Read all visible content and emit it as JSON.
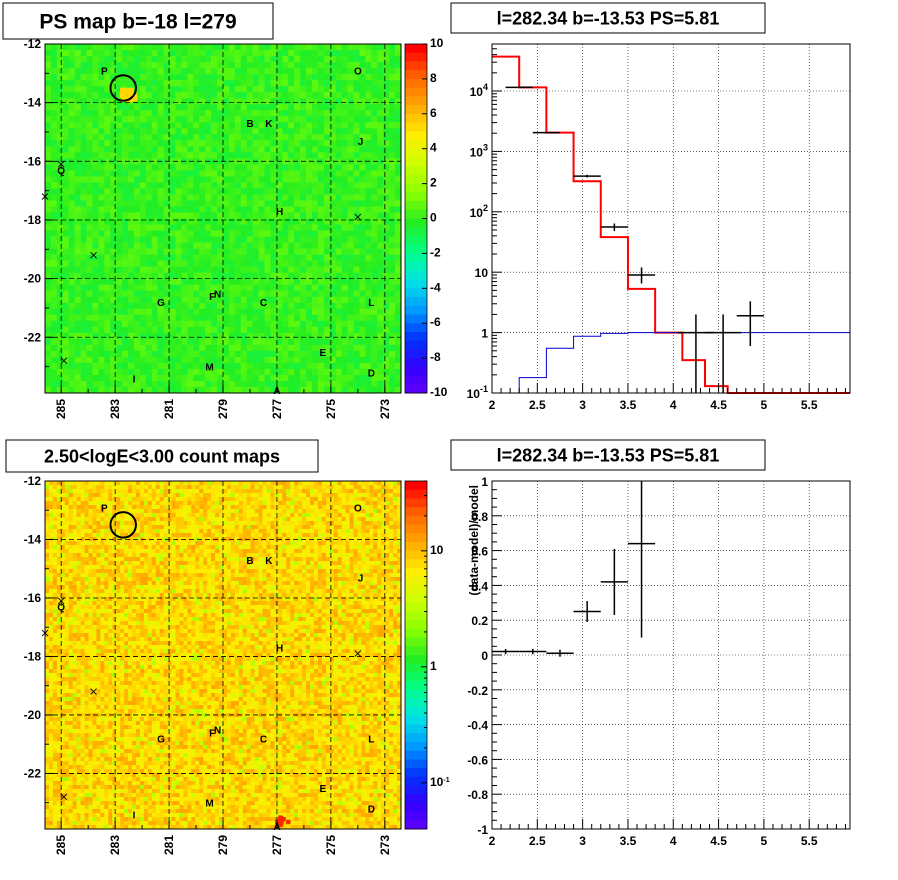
{
  "chart_data": [
    {
      "type": "heatmap",
      "title": "PS map b=-18 l=279",
      "x_ticks": [
        "285",
        "283",
        "281",
        "279",
        "277",
        "275",
        "273"
      ],
      "y_ticks": [
        "-12",
        "-14",
        "-16",
        "-18",
        "-20",
        "-22"
      ],
      "xlim": [
        285.6,
        272.4
      ],
      "ylim": [
        -23.9,
        -12.0
      ],
      "colorbar_ticks": [
        "10",
        "8",
        "6",
        "4",
        "2",
        "0",
        "-2",
        "-4",
        "-6",
        "-8",
        "-10"
      ],
      "colorbar_range": [
        -10,
        10
      ],
      "background_value": 0,
      "grid": true,
      "labels": [
        {
          "text": "P",
          "l": 283.4,
          "b": -12.9
        },
        {
          "text": "O",
          "l": 274.0,
          "b": -12.9
        },
        {
          "text": "B",
          "l": 278.0,
          "b": -14.7
        },
        {
          "text": "K",
          "l": 277.3,
          "b": -14.7
        },
        {
          "text": "J",
          "l": 273.9,
          "b": -15.3
        },
        {
          "text": "Q",
          "l": 285.0,
          "b": -16.3
        },
        {
          "text": "H",
          "l": 276.9,
          "b": -17.7
        },
        {
          "text": "G",
          "l": 281.3,
          "b": -20.8
        },
        {
          "text": "F",
          "l": 279.4,
          "b": -20.6
        },
        {
          "text": "N",
          "l": 279.2,
          "b": -20.5
        },
        {
          "text": "C",
          "l": 277.5,
          "b": -20.8
        },
        {
          "text": "L",
          "l": 273.5,
          "b": -20.8
        },
        {
          "text": "E",
          "l": 275.3,
          "b": -22.5
        },
        {
          "text": "M",
          "l": 279.5,
          "b": -23.0
        },
        {
          "text": "D",
          "l": 273.5,
          "b": -23.2
        },
        {
          "text": "I",
          "l": 282.3,
          "b": -23.4
        },
        {
          "text": "A",
          "l": 277.0,
          "b": -23.8
        }
      ],
      "markers": [
        {
          "l": 285.0,
          "b": -16.1
        },
        {
          "l": 285.6,
          "b": -17.2
        },
        {
          "l": 283.8,
          "b": -19.2
        },
        {
          "l": 274.0,
          "b": -17.9
        },
        {
          "l": 284.9,
          "b": -22.8
        }
      ],
      "circle": {
        "l": 282.7,
        "b": -13.5,
        "r_deg": 0.45
      },
      "hotspot": {
        "l": 282.6,
        "b": -13.6
      }
    },
    {
      "type": "line",
      "title": "l=282.34 b=-13.53 PS=5.81",
      "log_y": true,
      "xlim": [
        2.0,
        5.95
      ],
      "ylim": [
        0.1,
        60000
      ],
      "x_ticks": [
        "2",
        "2.5",
        "3",
        "3.5",
        "4",
        "4.5",
        "5",
        "5.5"
      ],
      "y_ticks": [
        {
          "value": 0.1,
          "label": "10^-1"
        },
        {
          "value": 1,
          "label": "1"
        },
        {
          "value": 10,
          "label": "10"
        },
        {
          "value": 100,
          "label": "10^2"
        },
        {
          "value": 1000,
          "label": "10^3"
        },
        {
          "value": 10000,
          "label": "10^4"
        }
      ],
      "grid": true,
      "series": [
        {
          "color": "#ff0000",
          "steps": [
            {
              "x0": 2.0,
              "x1": 2.3,
              "y": 37000
            },
            {
              "x0": 2.3,
              "x1": 2.6,
              "y": 11500
            },
            {
              "x0": 2.6,
              "x1": 2.9,
              "y": 2050
            },
            {
              "x0": 2.9,
              "x1": 3.2,
              "y": 320
            },
            {
              "x0": 3.2,
              "x1": 3.5,
              "y": 38
            },
            {
              "x0": 3.5,
              "x1": 3.8,
              "y": 5.3
            },
            {
              "x0": 3.8,
              "x1": 4.1,
              "y": 1.0
            },
            {
              "x0": 4.1,
              "x1": 4.35,
              "y": 0.35
            },
            {
              "x0": 4.35,
              "x1": 4.6,
              "y": 0.13
            },
            {
              "x0": 4.6,
              "x1": 5.95,
              "y": 0.1
            }
          ]
        },
        {
          "color": "#0000cc",
          "steps": [
            {
              "x0": 2.0,
              "x1": 2.3,
              "y": 0.1
            },
            {
              "x0": 2.3,
              "x1": 2.6,
              "y": 0.18
            },
            {
              "x0": 2.6,
              "x1": 2.9,
              "y": 0.55
            },
            {
              "x0": 2.9,
              "x1": 3.2,
              "y": 0.87
            },
            {
              "x0": 3.2,
              "x1": 3.5,
              "y": 0.97
            },
            {
              "x0": 3.5,
              "x1": 3.8,
              "y": 1.0
            },
            {
              "x0": 3.8,
              "x1": 5.95,
              "y": 1.0
            }
          ]
        },
        {
          "color": "#000000",
          "points": [
            {
              "x": 2.3,
              "xerr": 0.15,
              "y": 11500,
              "ylo": 11300,
              "yhi": 11700
            },
            {
              "x": 2.6,
              "xerr": 0.15,
              "y": 2050,
              "ylo": 2000,
              "yhi": 2100
            },
            {
              "x": 3.05,
              "xerr": 0.15,
              "y": 390,
              "ylo": 370,
              "yhi": 410
            },
            {
              "x": 3.35,
              "xerr": 0.15,
              "y": 56,
              "ylo": 48,
              "yhi": 64
            },
            {
              "x": 3.65,
              "xerr": 0.15,
              "y": 9,
              "ylo": 6.5,
              "yhi": 12
            },
            {
              "x": 4.25,
              "xerr": 0.2,
              "y": 1.0,
              "ylo": 0.1,
              "yhi": 2.0
            },
            {
              "x": 4.55,
              "xerr": 0.2,
              "y": 1.0,
              "ylo": 0.1,
              "yhi": 2.0
            },
            {
              "x": 4.85,
              "xerr": 0.15,
              "y": 1.9,
              "ylo": 0.6,
              "yhi": 3.3
            }
          ]
        }
      ]
    },
    {
      "type": "heatmap",
      "title": "2.50<logE<3.00 count maps",
      "x_ticks": [
        "285",
        "283",
        "281",
        "279",
        "277",
        "275",
        "273"
      ],
      "y_ticks": [
        "-12",
        "-14",
        "-16",
        "-18",
        "-20",
        "-22"
      ],
      "xlim": [
        285.6,
        272.4
      ],
      "ylim": [
        -23.9,
        -12.0
      ],
      "colorbar_ticks": [
        {
          "value": 10,
          "label": "10"
        },
        {
          "value": 1,
          "label": "1"
        },
        {
          "value": 0.1,
          "label": "10^-1"
        }
      ],
      "colorbar_range": [
        0.04,
        40
      ],
      "grid": true,
      "labels": [
        {
          "text": "P",
          "l": 283.4,
          "b": -12.9
        },
        {
          "text": "O",
          "l": 274.0,
          "b": -12.9
        },
        {
          "text": "B",
          "l": 278.0,
          "b": -14.7
        },
        {
          "text": "K",
          "l": 277.3,
          "b": -14.7
        },
        {
          "text": "J",
          "l": 273.9,
          "b": -15.3
        },
        {
          "text": "Q",
          "l": 285.0,
          "b": -16.3
        },
        {
          "text": "H",
          "l": 276.9,
          "b": -17.7
        },
        {
          "text": "G",
          "l": 281.3,
          "b": -20.8
        },
        {
          "text": "F",
          "l": 279.4,
          "b": -20.6
        },
        {
          "text": "N",
          "l": 279.2,
          "b": -20.5
        },
        {
          "text": "C",
          "l": 277.5,
          "b": -20.8
        },
        {
          "text": "L",
          "l": 273.5,
          "b": -20.8
        },
        {
          "text": "E",
          "l": 275.3,
          "b": -22.5
        },
        {
          "text": "M",
          "l": 279.5,
          "b": -23.0
        },
        {
          "text": "D",
          "l": 273.5,
          "b": -23.2
        },
        {
          "text": "I",
          "l": 282.3,
          "b": -23.4
        },
        {
          "text": "A",
          "l": 277.0,
          "b": -23.8
        }
      ],
      "markers": [
        {
          "l": 285.0,
          "b": -16.1
        },
        {
          "l": 285.6,
          "b": -17.2
        },
        {
          "l": 283.8,
          "b": -19.2
        },
        {
          "l": 274.0,
          "b": -17.9
        },
        {
          "l": 284.9,
          "b": -22.8
        }
      ],
      "circle": {
        "l": 282.7,
        "b": -13.5,
        "r_deg": 0.45
      },
      "hotspot": {
        "l": 276.9,
        "b": -23.6
      }
    },
    {
      "type": "scatter",
      "title": "l=282.34 b=-13.53 PS=5.81",
      "ylabel": "(data-model)/model",
      "xlim": [
        2.0,
        5.95
      ],
      "ylim": [
        -1.0,
        1.0
      ],
      "x_ticks": [
        "2",
        "2.5",
        "3",
        "3.5",
        "4",
        "4.5",
        "5",
        "5.5"
      ],
      "y_ticks": [
        "1",
        "0.8",
        "0.6",
        "0.4",
        "0.2",
        "0",
        "-0.2",
        "-0.4",
        "-0.6",
        "-0.8",
        "-1"
      ],
      "grid": true,
      "points": [
        {
          "x": 2.15,
          "xerr": 0.15,
          "y": 0.02,
          "yerr": 0.015
        },
        {
          "x": 2.45,
          "xerr": 0.15,
          "y": 0.02,
          "yerr": 0.015
        },
        {
          "x": 2.75,
          "xerr": 0.15,
          "y": 0.01,
          "yerr": 0.02
        },
        {
          "x": 3.05,
          "xerr": 0.15,
          "y": 0.25,
          "yerr": 0.06
        },
        {
          "x": 3.35,
          "xerr": 0.15,
          "y": 0.42,
          "yerr": 0.19
        },
        {
          "x": 3.65,
          "xerr": 0.15,
          "y": 0.64,
          "yerr": 0.54
        }
      ]
    }
  ]
}
